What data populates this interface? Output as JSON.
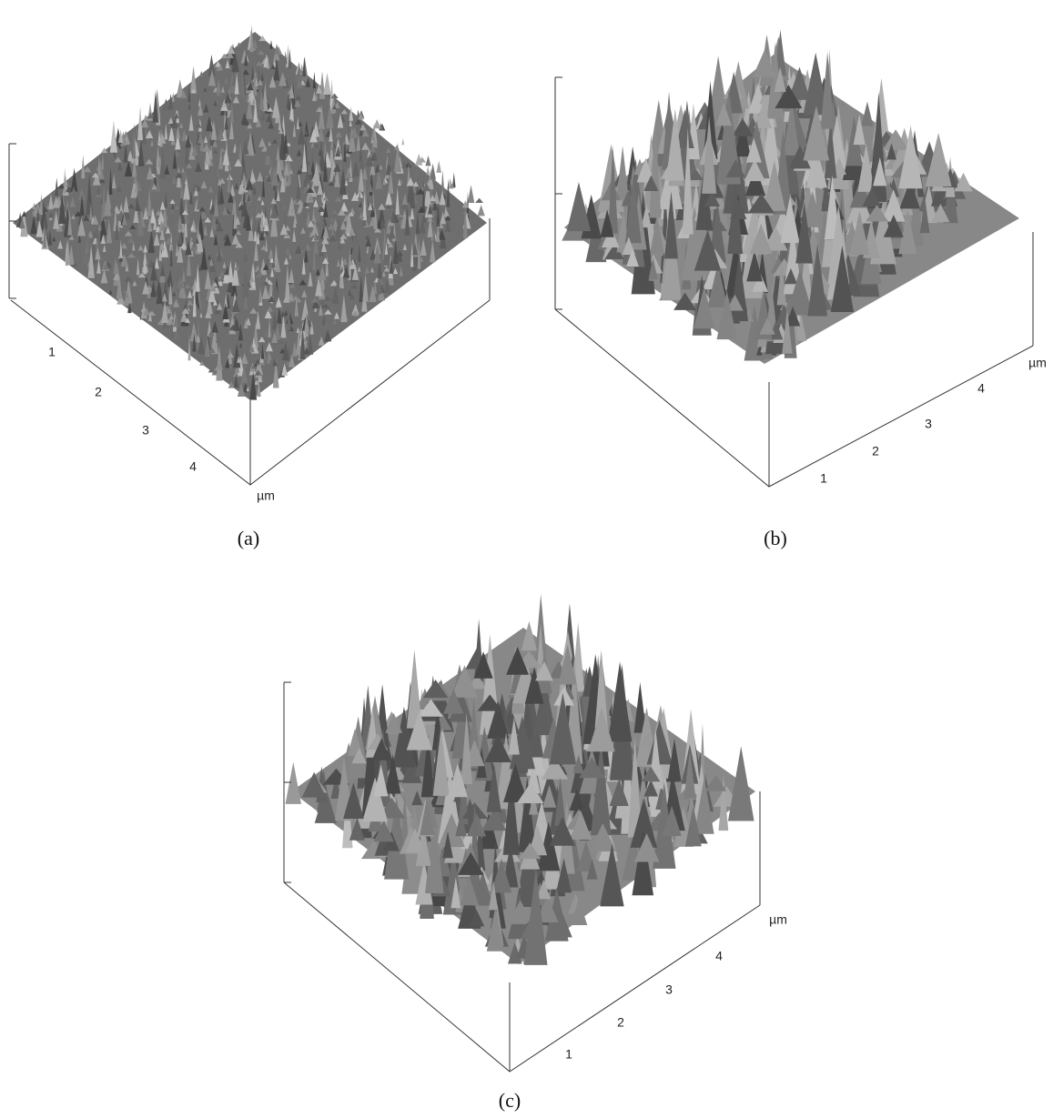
{
  "panels": [
    {
      "label": "(a)",
      "axis_ticks": [
        "1",
        "2",
        "3",
        "4"
      ],
      "unit": "µm"
    },
    {
      "label": "(b)",
      "axis_ticks": [
        "1",
        "2",
        "3",
        "4"
      ],
      "unit": "µm"
    },
    {
      "label": "(c)",
      "axis_ticks": [
        "1",
        "2",
        "3",
        "4"
      ],
      "unit": "µm"
    }
  ]
}
